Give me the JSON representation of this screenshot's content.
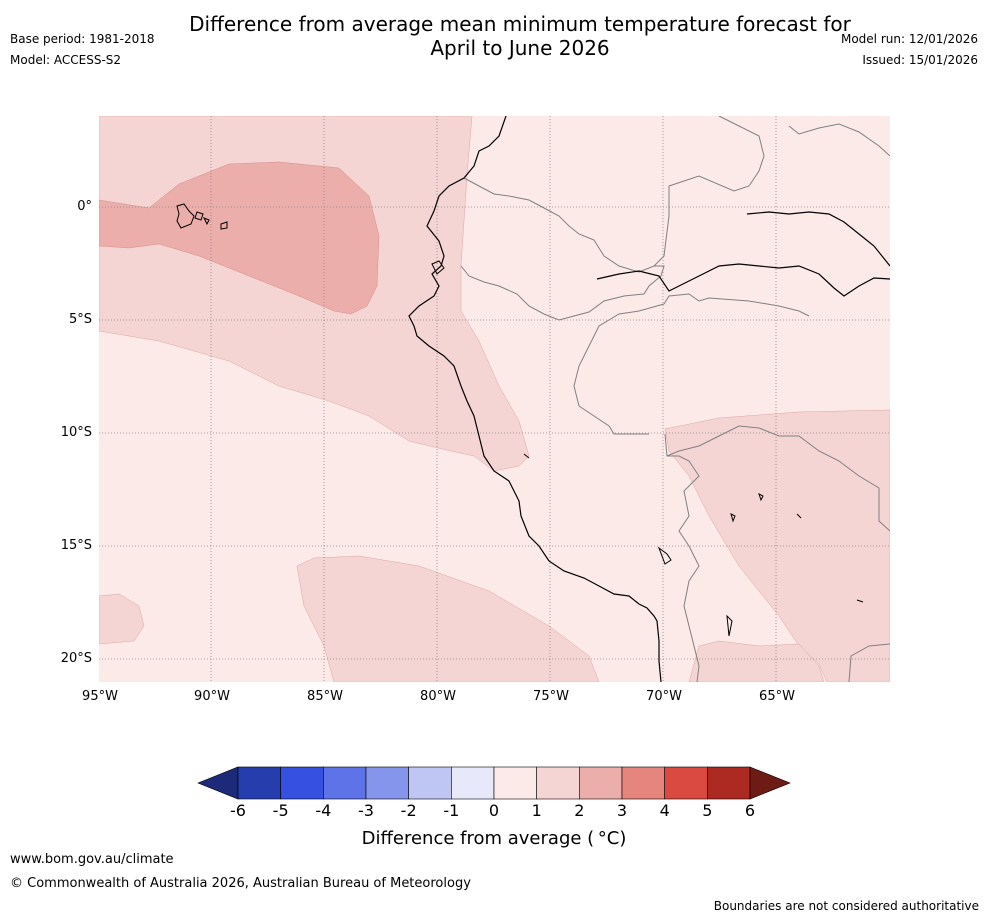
{
  "title_line1": "Difference from average mean minimum temperature forecast for",
  "title_line2": "April to June 2026",
  "meta_left": {
    "base_period": "Base period: 1981-2018",
    "model": "Model: ACCESS-S2"
  },
  "meta_right": {
    "model_run": "Model run: 12/01/2026",
    "issued": "Issued: 15/01/2026"
  },
  "map": {
    "lat_labels": [
      "0°",
      "5°S",
      "10°S",
      "15°S",
      "20°S"
    ],
    "lon_labels": [
      "95°W",
      "90°W",
      "85°W",
      "80°W",
      "75°W",
      "70°W",
      "65°W"
    ],
    "colors": {
      "bin_0_1": "#fbeae8",
      "bin_1_2": "#f5d5d3",
      "bin_2_3": "#ecaeab",
      "coast": "#000000",
      "border": "#808080",
      "grid": "#888888"
    }
  },
  "colorbar": {
    "ticks": [
      "-6",
      "-5",
      "-4",
      "-3",
      "-2",
      "-1",
      "0",
      "1",
      "2",
      "3",
      "4",
      "5",
      "6"
    ],
    "colors": [
      "#1d2a7a",
      "#263ead",
      "#3650e2",
      "#5f73e8",
      "#8595ec",
      "#c0c6f4",
      "#e7e9fb",
      "#fbeae8",
      "#f5d5d3",
      "#ecaeab",
      "#e5857e",
      "#da4a41",
      "#ad2a22",
      "#6e1a15"
    ],
    "label": "Difference from average ( °C)"
  },
  "footer": {
    "url": "www.bom.gov.au/climate",
    "copyright": "© Commonwealth of Australia 2026, Australian Bureau of Meteorology",
    "disclaimer": "Boundaries are not considered authoritative"
  }
}
